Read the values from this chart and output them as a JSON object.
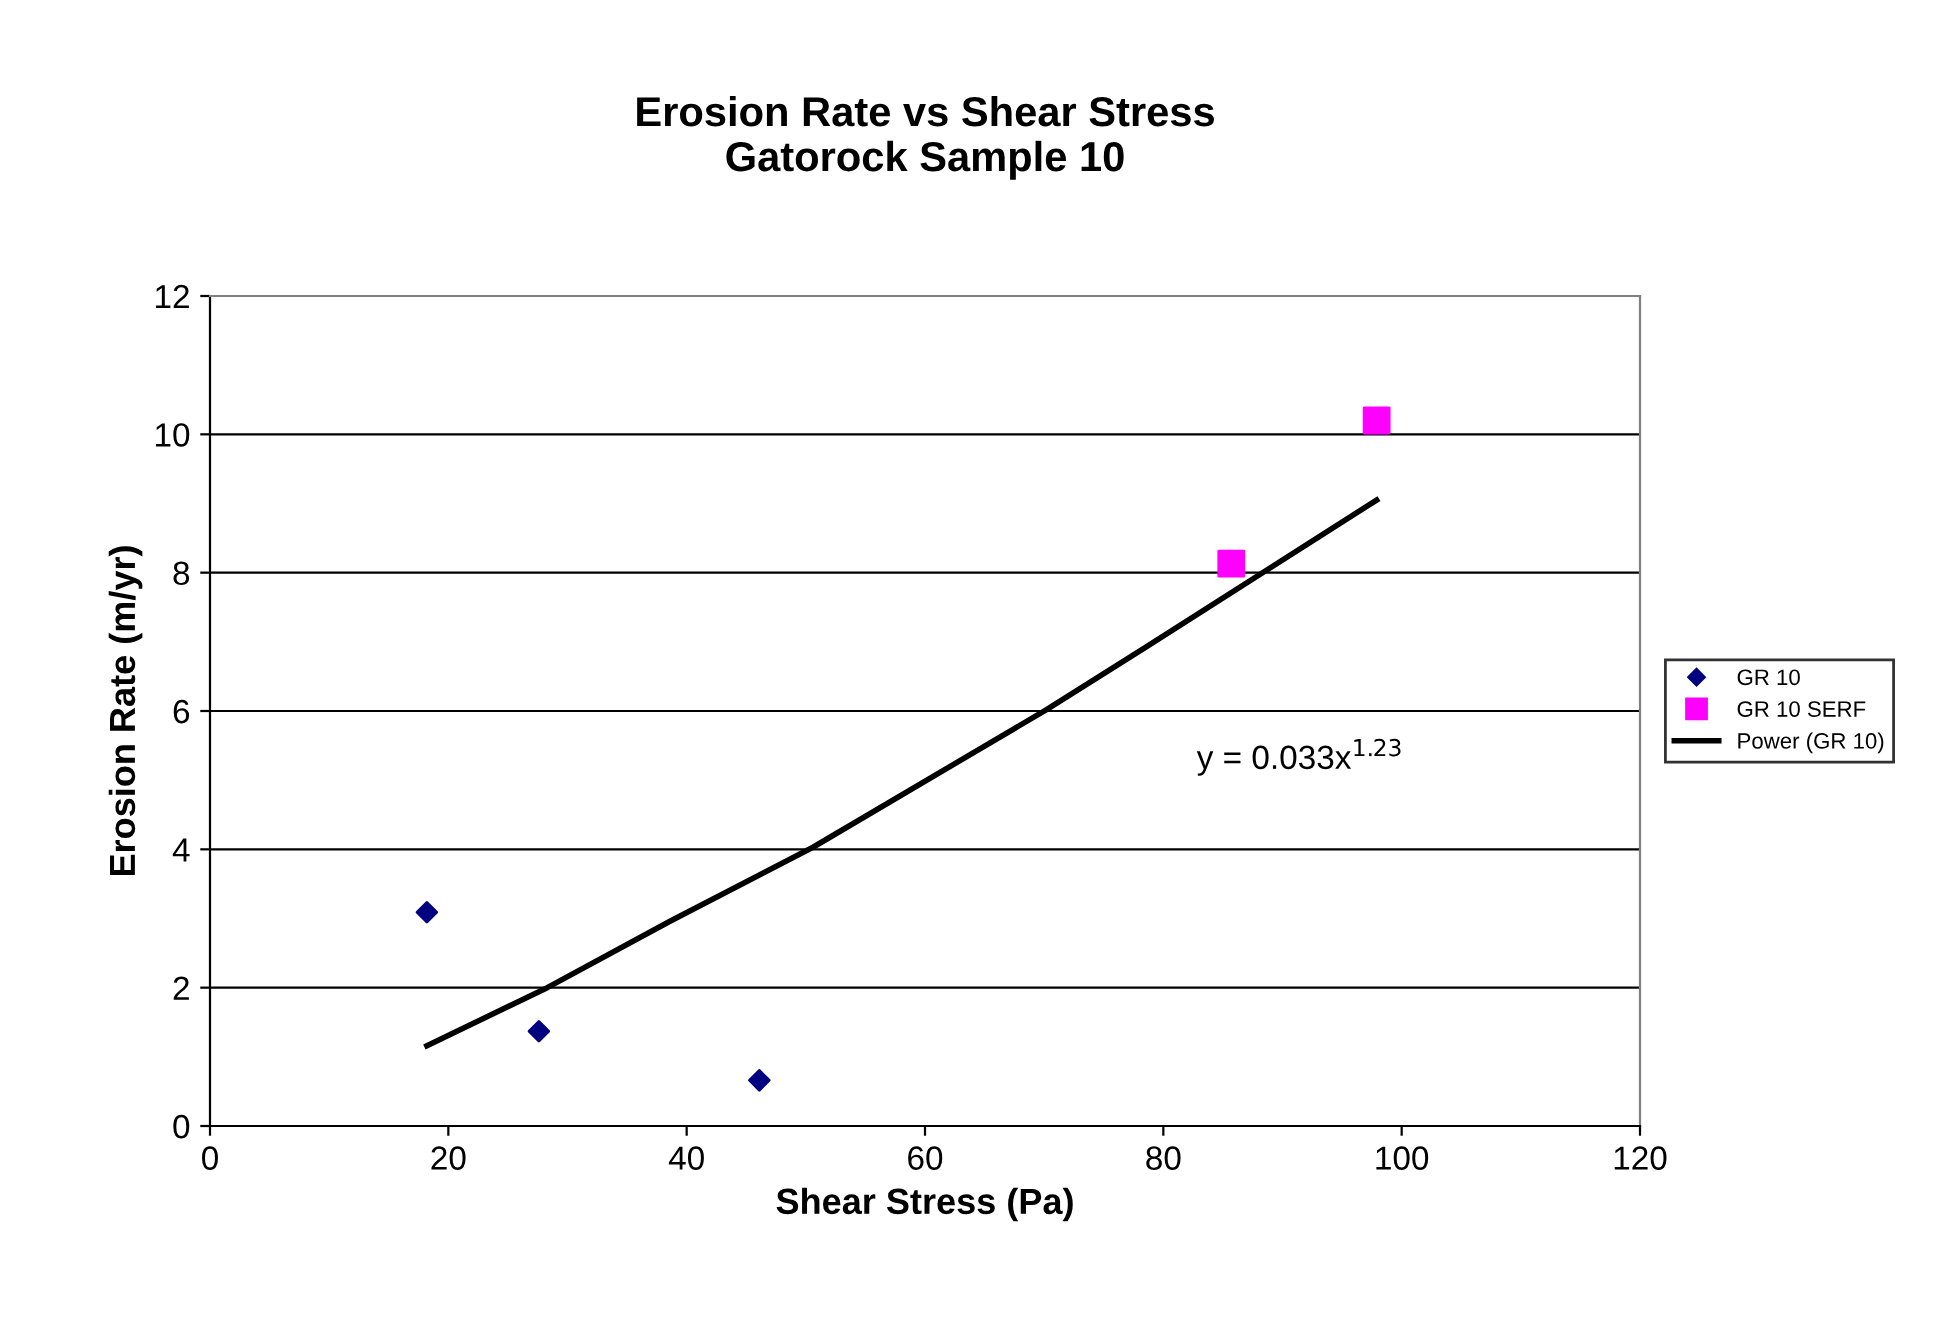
{
  "chart_data": {
    "type": "scatter",
    "title": "Erosion Rate vs Shear Stress\nGatorock Sample 10",
    "xlabel": "Shear Stress (Pa)",
    "ylabel": "Erosion Rate (m/yr)",
    "series": [
      {
        "name": "GR 10",
        "marker": "diamond",
        "color": "#000080",
        "x": [
          18.2,
          27.6,
          46.1
        ],
        "values": [
          3.09,
          1.37,
          0.66
        ]
      },
      {
        "name": "GR 10 SERF",
        "marker": "square",
        "color": "#ff00ff",
        "x": [
          85.7,
          97.9
        ],
        "values": [
          8.13,
          10.2
        ]
      },
      {
        "name": "Power (GR 10)",
        "type": "line",
        "marker": "none",
        "line_style": "solid",
        "color": "#000000",
        "x": [
          18.2,
          28.3,
          38.6,
          50.6,
          70.2,
          78.5,
          97.9
        ],
        "values": [
          1.16,
          2.0,
          2.96,
          4.03,
          6.02,
          6.92,
          9.05
        ]
      }
    ],
    "annotations": [
      "y = 0.033x$^{1.23}$"
    ],
    "xlim": [
      0,
      120
    ],
    "xticks": [
      0,
      20,
      40,
      60,
      80,
      100,
      120
    ],
    "ylim": [
      0,
      12
    ],
    "yticks": [
      0,
      2,
      4,
      6,
      8,
      10,
      12
    ],
    "grid": "y",
    "legend": "right"
  }
}
